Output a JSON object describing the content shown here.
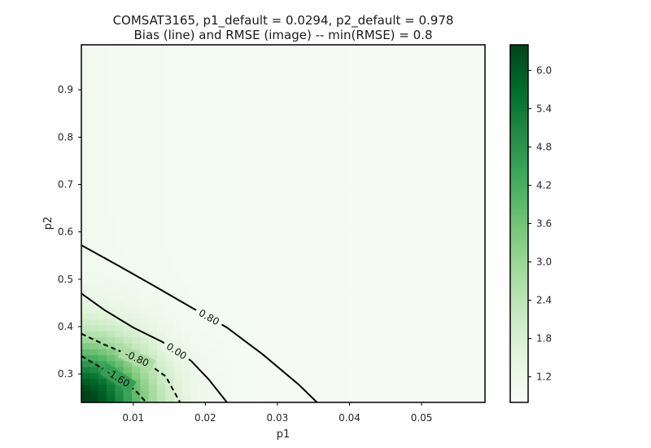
{
  "chart_data": {
    "type": "heatmap",
    "title": "COMSAT3165, p1_default = 0.0294, p2_default = 0.978",
    "subtitle": "Bias (line) and RMSE (image) -- min(RMSE) = 0.8",
    "xlabel": "p1",
    "ylabel": "p2",
    "xlim": [
      0.0028,
      0.0588
    ],
    "ylim": [
      0.24,
      0.995
    ],
    "xticks": [
      0.01,
      0.02,
      0.03,
      0.04,
      0.05
    ],
    "xtick_labels": [
      "0.01",
      "0.02",
      "0.03",
      "0.04",
      "0.05"
    ],
    "yticks": [
      0.3,
      0.4,
      0.5,
      0.6,
      0.7,
      0.8,
      0.9
    ],
    "ytick_labels": [
      "0.3",
      "0.4",
      "0.5",
      "0.6",
      "0.7",
      "0.8",
      "0.9"
    ],
    "grid": false,
    "colormap": "Greens",
    "colors": {
      "cmap_low": "#f7fcf5",
      "cmap_high": "#00441b",
      "contour_line": "#000000",
      "frame": "#000000"
    },
    "colorbar": {
      "min": 0.8,
      "max": 6.4,
      "ticks": [
        1.2,
        1.8,
        2.4,
        3.0,
        3.6,
        4.2,
        4.8,
        5.4,
        6.0
      ],
      "tick_labels": [
        "1.2",
        "1.8",
        "2.4",
        "3.0",
        "3.6",
        "4.2",
        "4.8",
        "5.4",
        "6.0"
      ]
    },
    "grid_resolution": {
      "nx": 48,
      "ny": 60
    },
    "rmse_model": "rmse = 0.8 + 0.2*exp(-(p1-0.0028)/0.03) + 5.6*exp(-((p1-0.0028)/0.0095)^2 - ((p2-0.24)/0.13)^2)",
    "contours": [
      {
        "level": 0.8,
        "label": "0.80",
        "style": "solid",
        "points": [
          [
            0.0028,
            0.572
          ],
          [
            0.008,
            0.528
          ],
          [
            0.013,
            0.485
          ],
          [
            0.018,
            0.441
          ],
          [
            0.023,
            0.398
          ],
          [
            0.028,
            0.341
          ],
          [
            0.033,
            0.277
          ],
          [
            0.0355,
            0.24
          ]
        ]
      },
      {
        "level": 0.0,
        "label": "0.00",
        "style": "solid",
        "points": [
          [
            0.0028,
            0.47
          ],
          [
            0.006,
            0.435
          ],
          [
            0.01,
            0.398
          ],
          [
            0.014,
            0.368
          ],
          [
            0.018,
            0.328
          ],
          [
            0.0205,
            0.288
          ],
          [
            0.023,
            0.24
          ]
        ]
      },
      {
        "level": -0.8,
        "label": "-0.80",
        "style": "dashed",
        "points": [
          [
            0.0028,
            0.385
          ],
          [
            0.006,
            0.362
          ],
          [
            0.009,
            0.343
          ],
          [
            0.012,
            0.322
          ],
          [
            0.0145,
            0.295
          ],
          [
            0.0165,
            0.24
          ]
        ]
      },
      {
        "level": -1.6,
        "label": "-1.60",
        "style": "dashed",
        "points": [
          [
            0.0028,
            0.338
          ],
          [
            0.0048,
            0.32
          ],
          [
            0.0068,
            0.302
          ],
          [
            0.009,
            0.281
          ],
          [
            0.0105,
            0.262
          ],
          [
            0.0118,
            0.24
          ]
        ]
      }
    ]
  }
}
